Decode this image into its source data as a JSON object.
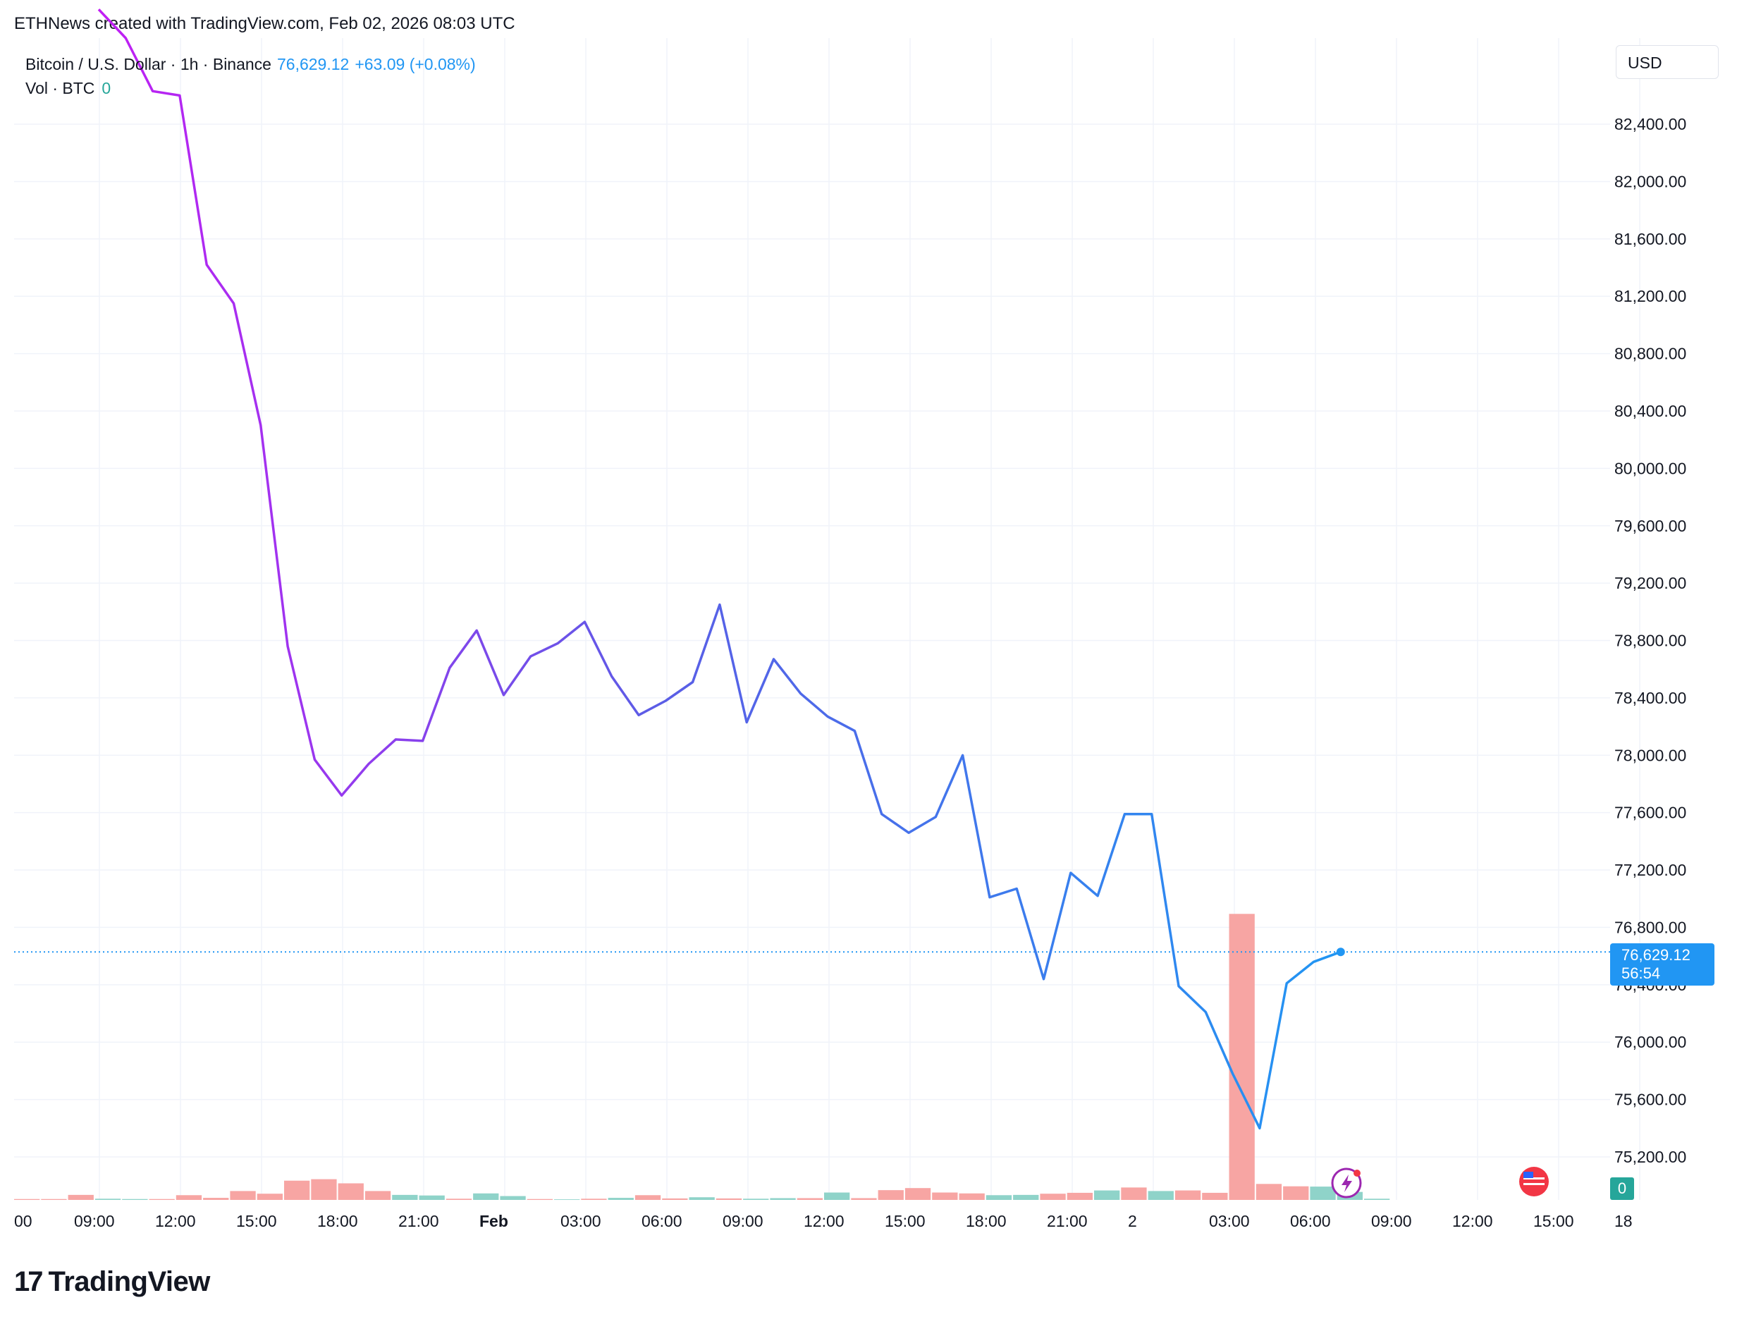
{
  "header": {
    "credit": "ETHNews created with TradingView.com, Feb 02, 2026 08:03 UTC"
  },
  "legend": {
    "symbol": "Bitcoin / U.S. Dollar · 1h · Binance",
    "last": "76,629.12",
    "change": "+63.09 (+0.08%)",
    "volume_label": "Vol · BTC",
    "volume_value": "0"
  },
  "currency": "USD",
  "price_tag": {
    "price": "76,629.12",
    "countdown": "56:54"
  },
  "volume_tag": "0",
  "footer": {
    "brand": "TradingView",
    "icon": "tradingview-logo-icon"
  },
  "colors": {
    "line_start": "#c21ef4",
    "line_mid": "#5b5de6",
    "line_end": "#2196f3",
    "volume_up": "#8fd3c9",
    "volume_down": "#f7a5a3",
    "grid": "#f0f3fa",
    "price_line": "#2196f3"
  },
  "chart_data": {
    "type": "line",
    "interval": "1h",
    "ylim": [
      74900,
      83000
    ],
    "y_ticks": [
      "82,400.00",
      "82,000.00",
      "81,600.00",
      "81,200.00",
      "80,800.00",
      "80,400.00",
      "80,000.00",
      "79,600.00",
      "79,200.00",
      "78,800.00",
      "78,400.00",
      "78,000.00",
      "77,600.00",
      "77,200.00",
      "76,800.00",
      "76,400.00",
      "76,000.00",
      "75,600.00",
      "75,200.00"
    ],
    "x_ticks": [
      "00",
      "09:00",
      "12:00",
      "15:00",
      "18:00",
      "21:00",
      "Feb",
      "03:00",
      "06:00",
      "09:00",
      "12:00",
      "15:00",
      "18:00",
      "21:00",
      "2",
      "03:00",
      "06:00",
      "09:00",
      "12:00",
      "15:00",
      "18"
    ],
    "x_bold": [
      "Feb"
    ],
    "price": [
      83200,
      83000,
      82630,
      82600,
      81420,
      81150,
      80300,
      78760,
      77970,
      77720,
      77940,
      78110,
      78100,
      78610,
      78870,
      78420,
      78690,
      78780,
      78930,
      78550,
      78280,
      78380,
      78510,
      79050,
      78230,
      78670,
      78430,
      78270,
      78170,
      77590,
      77460,
      77570,
      78000,
      77010,
      77070,
      76440,
      77180,
      77020,
      77590,
      77590,
      76390,
      76210,
      75780,
      75400,
      76410,
      76560,
      76629.12
    ],
    "volume": [
      3,
      3,
      17,
      4,
      3,
      3,
      16,
      7,
      30,
      21,
      65,
      70,
      56,
      30,
      17,
      15,
      4,
      22,
      13,
      3,
      2,
      4,
      7,
      16,
      5,
      9,
      5,
      4,
      6,
      6,
      25,
      6,
      33,
      40,
      25,
      22,
      16,
      17,
      21,
      24,
      32,
      42,
      30,
      32,
      24,
      966,
      54,
      46,
      45,
      27,
      4
    ],
    "volume_up": [
      false,
      false,
      false,
      true,
      true,
      false,
      false,
      false,
      false,
      false,
      false,
      false,
      false,
      false,
      true,
      true,
      false,
      true,
      true,
      false,
      true,
      false,
      true,
      false,
      false,
      true,
      false,
      true,
      true,
      false,
      true,
      false,
      false,
      false,
      false,
      false,
      true,
      true,
      false,
      false,
      true,
      false,
      true,
      false,
      false,
      false,
      false,
      false,
      true,
      true,
      true
    ],
    "last_price": 76629.12
  }
}
